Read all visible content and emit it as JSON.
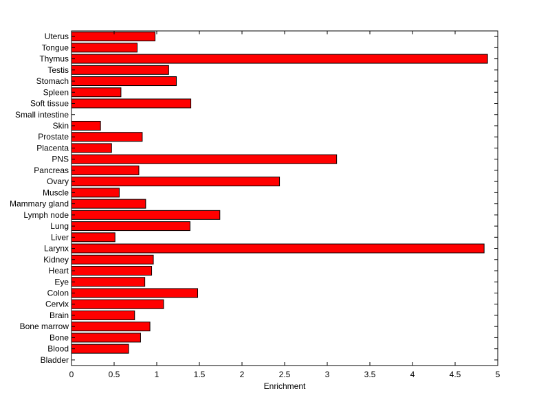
{
  "chart_data": {
    "type": "bar",
    "orientation": "horizontal",
    "title": "",
    "xlabel": "Enrichment",
    "ylabel": "",
    "xlim": [
      0,
      5
    ],
    "xticks": [
      "0",
      "0.5",
      "1",
      "1.5",
      "2",
      "2.5",
      "3",
      "3.5",
      "4",
      "4.5",
      "5"
    ],
    "grid": false,
    "legend": "none",
    "bar_color": "#ff0000",
    "edge_color": "#000000",
    "categories": [
      "Uterus",
      "Tongue",
      "Thymus",
      "Testis",
      "Stomach",
      "Spleen",
      "Soft tissue",
      "Small intestine",
      "Skin",
      "Prostate",
      "Placenta",
      "PNS",
      "Pancreas",
      "Ovary",
      "Muscle",
      "Mammary gland",
      "Lymph node",
      "Lung",
      "Liver",
      "Larynx",
      "Kidney",
      "Heart",
      "Eye",
      "Colon",
      "Cervix",
      "Brain",
      "Bone marrow",
      "Bone",
      "Blood",
      "Bladder"
    ],
    "values": [
      0.98,
      0.77,
      4.88,
      1.14,
      1.23,
      0.58,
      1.4,
      0,
      0.34,
      0.83,
      0.47,
      3.11,
      0.79,
      2.44,
      0.56,
      0.87,
      1.74,
      1.39,
      0.51,
      4.84,
      0.96,
      0.94,
      0.86,
      1.48,
      1.08,
      0.74,
      0.92,
      0.81,
      0.67,
      0
    ]
  }
}
